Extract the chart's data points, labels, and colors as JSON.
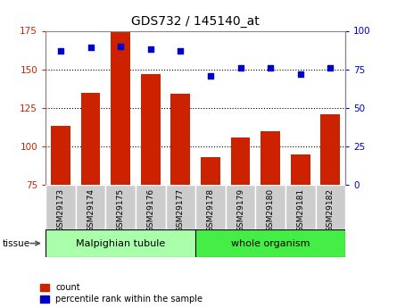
{
  "title": "GDS732 / 145140_at",
  "samples": [
    "GSM29173",
    "GSM29174",
    "GSM29175",
    "GSM29176",
    "GSM29177",
    "GSM29178",
    "GSM29179",
    "GSM29180",
    "GSM29181",
    "GSM29182"
  ],
  "counts": [
    113,
    135,
    175,
    147,
    134,
    93,
    106,
    110,
    95,
    121
  ],
  "percentiles": [
    87,
    89,
    90,
    88,
    87,
    71,
    76,
    76,
    72,
    76
  ],
  "ylim_left": [
    75,
    175
  ],
  "ylim_right": [
    0,
    100
  ],
  "yticks_left": [
    75,
    100,
    125,
    150,
    175
  ],
  "yticks_right": [
    0,
    25,
    50,
    75,
    100
  ],
  "bar_color": "#cc2200",
  "dot_color": "#0000cc",
  "gridline_values": [
    100,
    125,
    150
  ],
  "groups": [
    {
      "label": "Malpighian tubule",
      "start": 0,
      "end": 5,
      "color": "#aaffaa"
    },
    {
      "label": "whole organism",
      "start": 5,
      "end": 10,
      "color": "#44ee44"
    }
  ],
  "tissue_label": "tissue",
  "legend_count_label": "count",
  "legend_percentile_label": "percentile rank within the sample",
  "label_bg_color": "#cccccc",
  "plot_bg": "#ffffff",
  "outer_border_color": "#888888"
}
